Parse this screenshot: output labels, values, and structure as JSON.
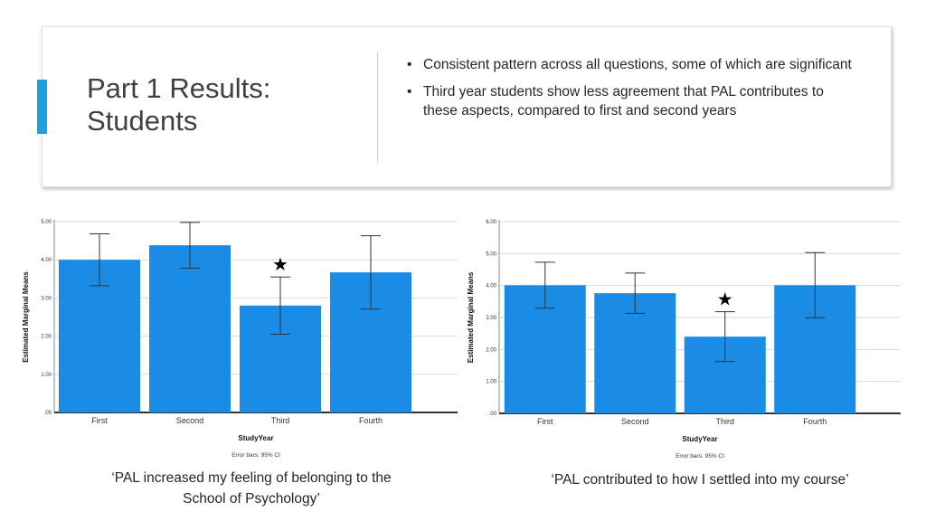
{
  "slide": {
    "title_line1": "Part 1 Results:",
    "title_line2": "Students",
    "bullets": [
      "Consistent pattern across all questions, some of which are significant",
      "Third year students show less agreement that PAL contributes to these aspects, compared to first and second years"
    ],
    "accent_color": "#1ea0dc"
  },
  "chart_data": [
    {
      "type": "bar",
      "categories": [
        "First",
        "Second",
        "Third",
        "Fourth"
      ],
      "values": [
        4.0,
        4.38,
        2.8,
        3.67
      ],
      "ci_low": [
        3.32,
        3.78,
        2.05,
        2.71
      ],
      "ci_high": [
        4.68,
        4.98,
        3.55,
        4.63
      ],
      "ylim": [
        0,
        5
      ],
      "yticks": [
        "5.00",
        "4.00",
        "3.00",
        "2.00",
        "1.00",
        ".00"
      ],
      "xlabel": "StudyYear",
      "ylabel": "Estimated Marginal Means",
      "note": "Error bars: 95% CI",
      "star": "★",
      "star_category": "Third",
      "caption": "‘PAL increased my feeling of belonging to the School of Psychology’",
      "bar_color": "#1a8ce6"
    },
    {
      "type": "bar",
      "categories": [
        "First",
        "Second",
        "Third",
        "Fourth"
      ],
      "values": [
        4.01,
        3.76,
        2.4,
        4.01
      ],
      "ci_low": [
        3.29,
        3.13,
        1.62,
        2.99
      ],
      "ci_high": [
        4.73,
        4.39,
        3.18,
        5.03
      ],
      "ylim": [
        0,
        6
      ],
      "yticks": [
        "6.00",
        "5.00",
        "4.00",
        "3.00",
        "2.00",
        "1.00",
        ".00"
      ],
      "xlabel": "StudyYear",
      "ylabel": "Estimated Marginal Means",
      "note": "Error bars: 95% CI",
      "star": "★",
      "star_category": "Third",
      "caption": "‘PAL contributed to how I settled into my course’",
      "bar_color": "#1a8ce6"
    }
  ]
}
